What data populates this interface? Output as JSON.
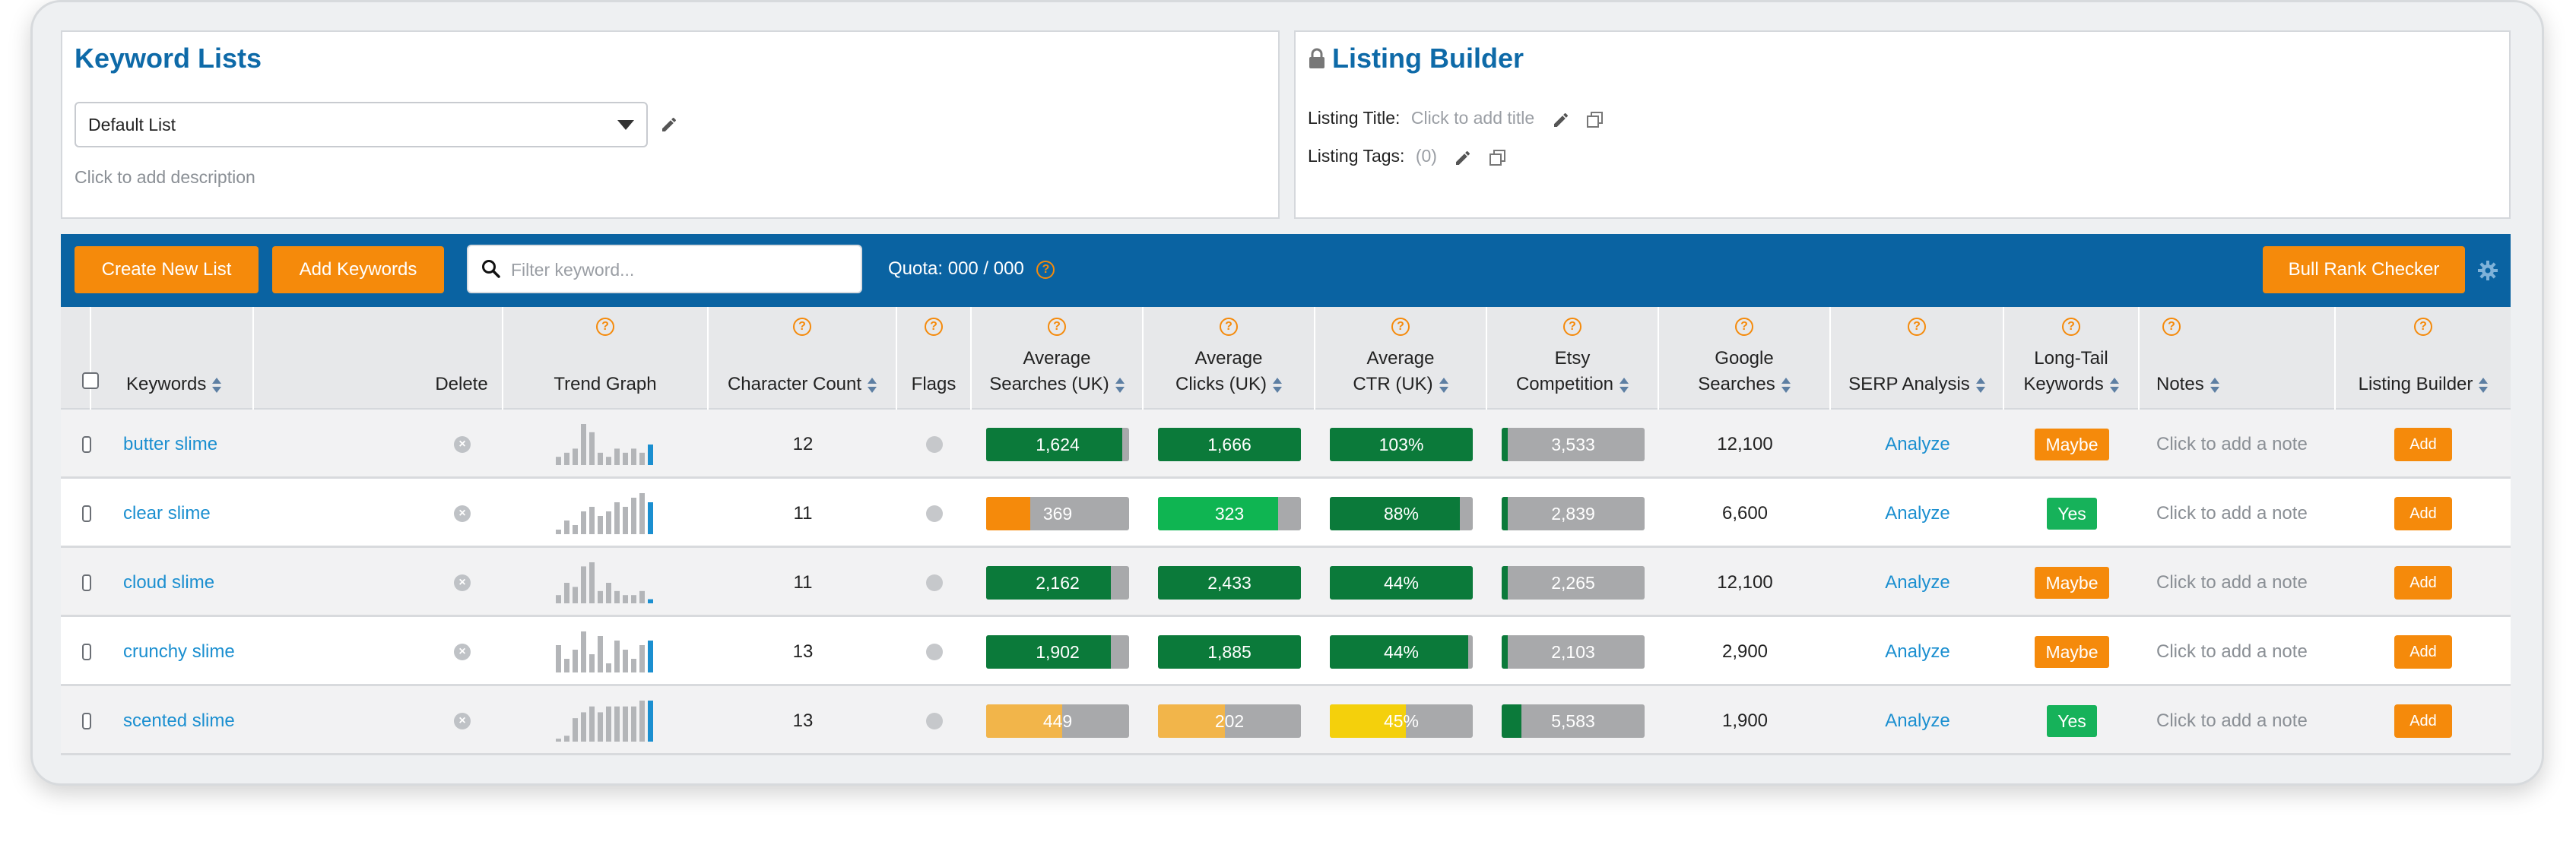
{
  "keyword_lists": {
    "title": "Keyword Lists",
    "selected_list": "Default List",
    "description_placeholder": "Click to add description"
  },
  "listing_builder": {
    "title": "Listing Builder",
    "title_label": "Listing Title:",
    "title_placeholder": "Click to add title",
    "tags_label": "Listing Tags:",
    "tags_count": "(0)"
  },
  "toolbar": {
    "create_new_list": "Create New List",
    "add_keywords": "Add Keywords",
    "search_placeholder": "Filter keyword...",
    "quota": "Quota: 000 / 000",
    "bull_rank_checker": "Bull Rank Checker"
  },
  "columns": {
    "keywords": "Keywords",
    "delete": "Delete",
    "trend_graph": "Trend Graph",
    "character_count": "Character Count",
    "flags": "Flags",
    "avg_searches_1": "Average",
    "avg_searches_2": "Searches (UK)",
    "avg_clicks_1": "Average",
    "avg_clicks_2": "Clicks (UK)",
    "avg_ctr_1": "Average",
    "avg_ctr_2": "CTR (UK)",
    "etsy_comp_1": "Etsy",
    "etsy_comp_2": "Competition",
    "google_1": "Google",
    "google_2": "Searches",
    "serp": "SERP Analysis",
    "longtail_1": "Long-Tail",
    "longtail_2": "Keywords",
    "notes": "Notes",
    "listing_builder": "Listing Builder"
  },
  "colors": {
    "dark_green": "#0b7a3a",
    "bright_green": "#0fb552",
    "orange": "#f58a0b",
    "light_orange": "#f2b54a",
    "yellow": "#f4d00c",
    "gray": "#a8a9ab",
    "trend_bar": "#b3b5b8",
    "trend_last": "#1b8fd0"
  },
  "rows": [
    {
      "keyword": "butter slime",
      "trend": [
        2,
        3,
        4,
        10,
        8,
        3,
        2,
        4,
        3,
        4,
        3,
        5
      ],
      "char_count": "12",
      "avg_searches": {
        "value": "1,624",
        "fill": 0.95,
        "color": "#0b7a3a"
      },
      "avg_clicks": {
        "value": "1,666",
        "fill": 1.0,
        "color": "#0b7a3a"
      },
      "avg_ctr": {
        "value": "103%",
        "fill": 1.0,
        "color": "#0b7a3a"
      },
      "etsy_comp": {
        "value": "3,533",
        "fill": 0.04,
        "color": "#0b7a3a"
      },
      "google_searches": "12,100",
      "serp": "Analyze",
      "longtail": "Maybe",
      "note": "Click to add a note",
      "add": "Add"
    },
    {
      "keyword": "clear slime",
      "trend": [
        1,
        3,
        2,
        5,
        6,
        4,
        5,
        7,
        6,
        8,
        9,
        7
      ],
      "char_count": "11",
      "avg_searches": {
        "value": "369",
        "fill": 0.31,
        "color": "#f58a0b"
      },
      "avg_clicks": {
        "value": "323",
        "fill": 0.84,
        "color": "#0fb552"
      },
      "avg_ctr": {
        "value": "88%",
        "fill": 0.91,
        "color": "#0b7a3a"
      },
      "etsy_comp": {
        "value": "2,839",
        "fill": 0.04,
        "color": "#0b7a3a"
      },
      "google_searches": "6,600",
      "serp": "Analyze",
      "longtail": "Yes",
      "note": "Click to add a note",
      "add": "Add"
    },
    {
      "keyword": "cloud slime",
      "trend": [
        2,
        5,
        4,
        9,
        10,
        3,
        5,
        3,
        2,
        2,
        3,
        1
      ],
      "char_count": "11",
      "avg_searches": {
        "value": "2,162",
        "fill": 0.87,
        "color": "#0b7a3a"
      },
      "avg_clicks": {
        "value": "2,433",
        "fill": 1.0,
        "color": "#0b7a3a"
      },
      "avg_ctr": {
        "value": "44%",
        "fill": 1.0,
        "color": "#0b7a3a"
      },
      "etsy_comp": {
        "value": "2,265",
        "fill": 0.04,
        "color": "#0b7a3a"
      },
      "google_searches": "12,100",
      "serp": "Analyze",
      "longtail": "Maybe",
      "note": "Click to add a note",
      "add": "Add"
    },
    {
      "keyword": "crunchy slime",
      "trend": [
        6,
        3,
        5,
        9,
        4,
        8,
        2,
        7,
        5,
        3,
        6,
        7
      ],
      "char_count": "13",
      "avg_searches": {
        "value": "1,902",
        "fill": 0.87,
        "color": "#0b7a3a"
      },
      "avg_clicks": {
        "value": "1,885",
        "fill": 1.0,
        "color": "#0b7a3a"
      },
      "avg_ctr": {
        "value": "44%",
        "fill": 0.97,
        "color": "#0b7a3a"
      },
      "etsy_comp": {
        "value": "2,103",
        "fill": 0.04,
        "color": "#0b7a3a"
      },
      "google_searches": "2,900",
      "serp": "Analyze",
      "longtail": "Maybe",
      "note": "Click to add a note",
      "add": "Add"
    },
    {
      "keyword": "scented slime",
      "trend": [
        0.5,
        1,
        4,
        5,
        6,
        5,
        6,
        6,
        6,
        6,
        7,
        7
      ],
      "char_count": "13",
      "avg_searches": {
        "value": "449",
        "fill": 0.53,
        "color": "#f2b54a"
      },
      "avg_clicks": {
        "value": "202",
        "fill": 0.47,
        "color": "#f2b54a"
      },
      "avg_ctr": {
        "value": "45%",
        "fill": 0.53,
        "color": "#f4d00c"
      },
      "etsy_comp": {
        "value": "5,583",
        "fill": 0.14,
        "color": "#0b7a3a"
      },
      "google_searches": "1,900",
      "serp": "Analyze",
      "longtail": "Yes",
      "note": "Click to add a note",
      "add": "Add"
    }
  ]
}
